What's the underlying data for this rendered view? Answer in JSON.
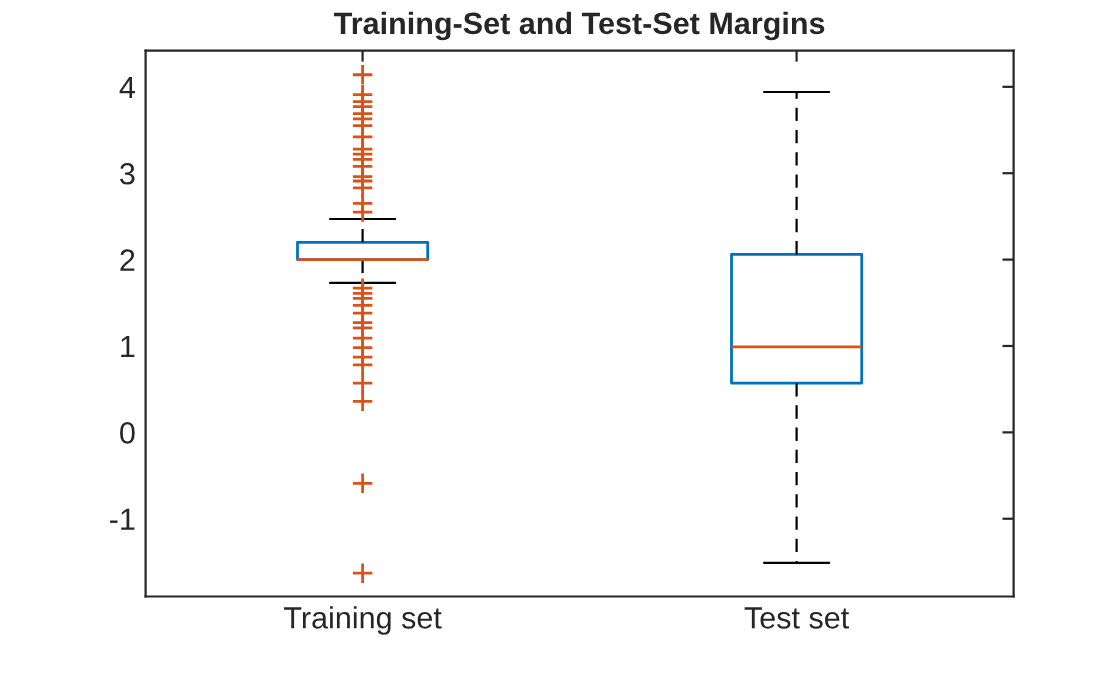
{
  "chart_data": {
    "type": "box",
    "title": "Training-Set and Test-Set Margins",
    "categories": [
      "Training set",
      "Test set"
    ],
    "color": "#0072bd",
    "marker": "cross",
    "boxes": [
      {
        "low": 1.73,
        "q1": 2.0,
        "median": 2.0,
        "q3": 2.2,
        "high": 2.47,
        "outliers": [
          4.14,
          3.91,
          3.83,
          3.77,
          3.69,
          3.63,
          3.55,
          3.42,
          3.28,
          3.22,
          3.16,
          3.08,
          2.96,
          2.91,
          2.83,
          2.65,
          2.55,
          1.67,
          1.61,
          1.55,
          1.47,
          1.38,
          1.27,
          1.21,
          1.09,
          0.98,
          0.87,
          0.78,
          0.57,
          0.36,
          -0.59,
          -1.63
        ]
      },
      {
        "low": -1.51,
        "q1": 0.57,
        "median": 0.99,
        "q3": 2.06,
        "high": 3.94
      }
    ],
    "ylim": [
      -1.9,
      4.42
    ],
    "yticks": [
      -1,
      0,
      1,
      2,
      3,
      4
    ],
    "grid": false
  }
}
